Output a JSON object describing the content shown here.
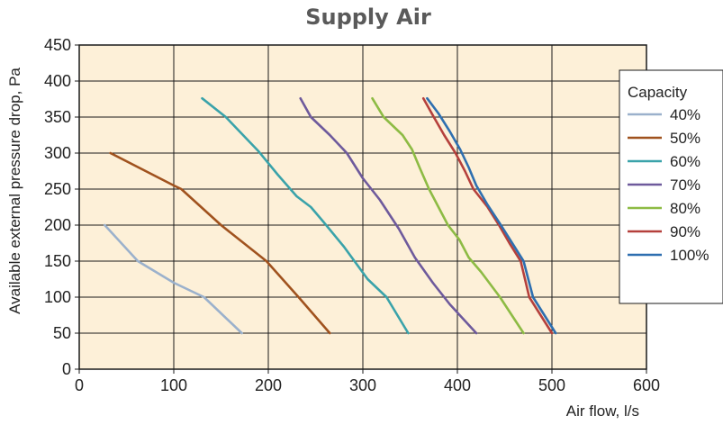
{
  "chart_data": {
    "type": "line",
    "title": "Supply Air",
    "xlabel": "Air flow, l/s",
    "ylabel": "Available external pressure drop, Pa",
    "xlim": [
      0,
      600
    ],
    "ylim": [
      0,
      450
    ],
    "xticks": [
      "0",
      "100",
      "200",
      "300",
      "400",
      "500",
      "600"
    ],
    "yticks": [
      "0",
      "50",
      "100",
      "150",
      "200",
      "250",
      "300",
      "350",
      "400",
      "450"
    ],
    "grid": true,
    "legend_title": "Capacity",
    "legend_position": "right",
    "background_color": "#fdf0d8",
    "series": [
      {
        "name": "40%",
        "color": "#9bb1cc",
        "points": [
          [
            27,
            200
          ],
          [
            62,
            150
          ],
          [
            100,
            120
          ],
          [
            132,
            100
          ],
          [
            172,
            50
          ]
        ]
      },
      {
        "name": "50%",
        "color": "#a0521e",
        "points": [
          [
            33,
            300
          ],
          [
            100,
            255
          ],
          [
            108,
            250
          ],
          [
            150,
            200
          ],
          [
            198,
            150
          ],
          [
            232,
            100
          ],
          [
            265,
            50
          ]
        ]
      },
      {
        "name": "60%",
        "color": "#3aa3aa",
        "points": [
          [
            130,
            376
          ],
          [
            155,
            350
          ],
          [
            190,
            302
          ],
          [
            210,
            270
          ],
          [
            230,
            240
          ],
          [
            245,
            225
          ],
          [
            258,
            205
          ],
          [
            280,
            170
          ],
          [
            305,
            125
          ],
          [
            325,
            100
          ],
          [
            348,
            50
          ]
        ]
      },
      {
        "name": "70%",
        "color": "#6e5a9c",
        "points": [
          [
            234,
            376
          ],
          [
            245,
            350
          ],
          [
            265,
            325
          ],
          [
            283,
            300
          ],
          [
            300,
            265
          ],
          [
            318,
            235
          ],
          [
            338,
            195
          ],
          [
            355,
            155
          ],
          [
            374,
            120
          ],
          [
            392,
            90
          ],
          [
            420,
            50
          ]
        ]
      },
      {
        "name": "80%",
        "color": "#8dbb44",
        "points": [
          [
            310,
            376
          ],
          [
            322,
            350
          ],
          [
            342,
            325
          ],
          [
            352,
            305
          ],
          [
            360,
            280
          ],
          [
            370,
            250
          ],
          [
            380,
            225
          ],
          [
            390,
            200
          ],
          [
            402,
            180
          ],
          [
            412,
            155
          ],
          [
            425,
            135
          ],
          [
            445,
            100
          ],
          [
            470,
            50
          ]
        ]
      },
      {
        "name": "90%",
        "color": "#b5403c",
        "points": [
          [
            364,
            376
          ],
          [
            375,
            350
          ],
          [
            386,
            325
          ],
          [
            398,
            300
          ],
          [
            408,
            275
          ],
          [
            417,
            250
          ],
          [
            432,
            225
          ],
          [
            444,
            200
          ],
          [
            455,
            175
          ],
          [
            467,
            150
          ],
          [
            476,
            100
          ],
          [
            500,
            50
          ]
        ]
      },
      {
        "name": "100%",
        "color": "#2e6fb0",
        "points": [
          [
            368,
            376
          ],
          [
            380,
            355
          ],
          [
            392,
            330
          ],
          [
            403,
            305
          ],
          [
            412,
            280
          ],
          [
            420,
            255
          ],
          [
            432,
            228
          ],
          [
            446,
            200
          ],
          [
            458,
            175
          ],
          [
            470,
            150
          ],
          [
            480,
            100
          ],
          [
            504,
            50
          ]
        ]
      }
    ]
  }
}
